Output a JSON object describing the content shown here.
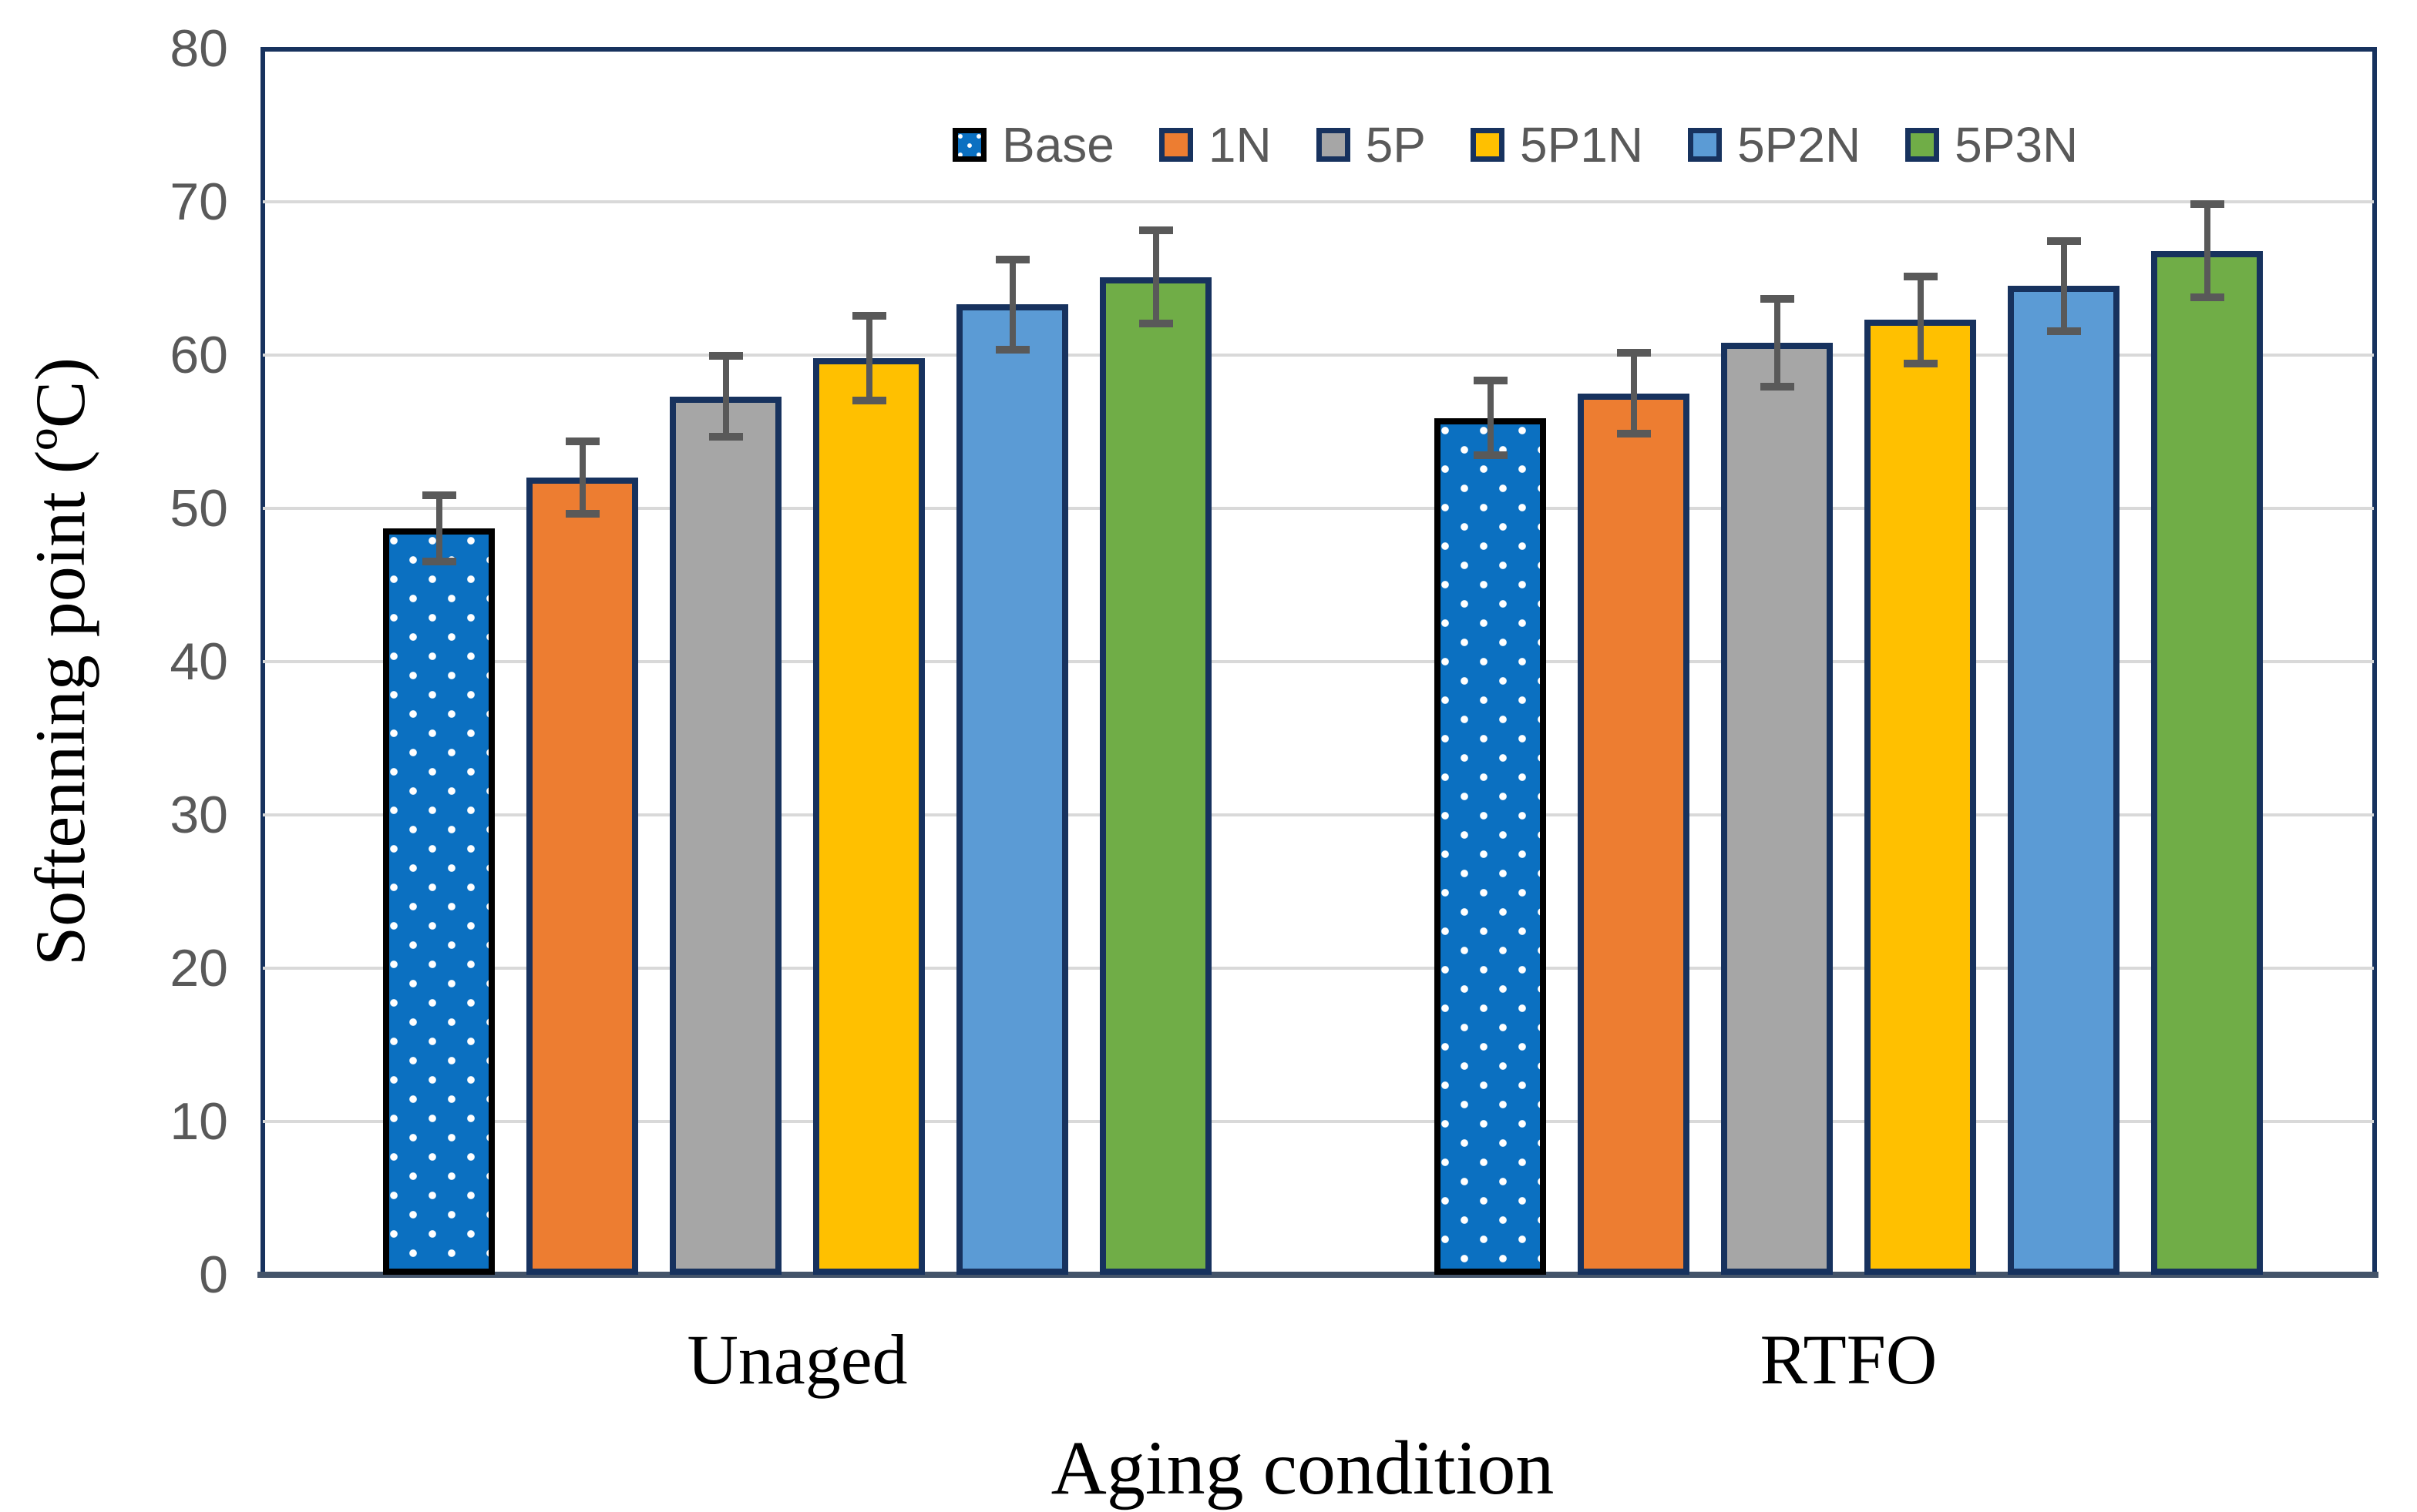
{
  "chart_data": {
    "type": "bar",
    "title": "",
    "xlabel": "Aging condition",
    "ylabel": "Softenning point (ºC)",
    "ylim": [
      0,
      80
    ],
    "yticks": [
      0,
      10,
      20,
      30,
      40,
      50,
      60,
      70,
      80
    ],
    "grid": true,
    "legend_position": "top-inside-horizontal",
    "categories": [
      "Unaged",
      "RTFO"
    ],
    "series": [
      {
        "name": "Base",
        "fill": "#0B70C1",
        "border": "#000000",
        "pattern": "white-dots",
        "values": [
          48.7,
          55.9
        ],
        "errors": [
          2.4,
          2.7
        ]
      },
      {
        "name": "1N",
        "fill": "#ED7D31",
        "border": "#17325E",
        "pattern": "solid",
        "values": [
          52.0,
          57.5
        ],
        "errors": [
          2.6,
          2.9
        ]
      },
      {
        "name": "5P",
        "fill": "#A6A6A6",
        "border": "#17325E",
        "pattern": "solid",
        "values": [
          57.3,
          60.8
        ],
        "errors": [
          2.9,
          3.1
        ]
      },
      {
        "name": "5P1N",
        "fill": "#FFC000",
        "border": "#17325E",
        "pattern": "solid",
        "values": [
          59.8,
          62.3
        ],
        "errors": [
          3.0,
          3.1
        ]
      },
      {
        "name": "5P2N",
        "fill": "#5B9BD5",
        "border": "#17325E",
        "pattern": "solid",
        "values": [
          63.3,
          64.5
        ],
        "errors": [
          3.2,
          3.2
        ]
      },
      {
        "name": "5P3N",
        "fill": "#70AD47",
        "border": "#17325E",
        "pattern": "solid",
        "values": [
          65.1,
          66.8
        ],
        "errors": [
          3.3,
          3.3
        ]
      }
    ],
    "colors": {
      "gridline": "#D9D9D9",
      "plot_border": "#17325E",
      "x_axis_line": "#44546A",
      "error_bar": "#595959",
      "tick_text": "#595959",
      "legend_text": "#595959",
      "axis_title_text": "#000000",
      "background": "#FFFFFF"
    }
  }
}
